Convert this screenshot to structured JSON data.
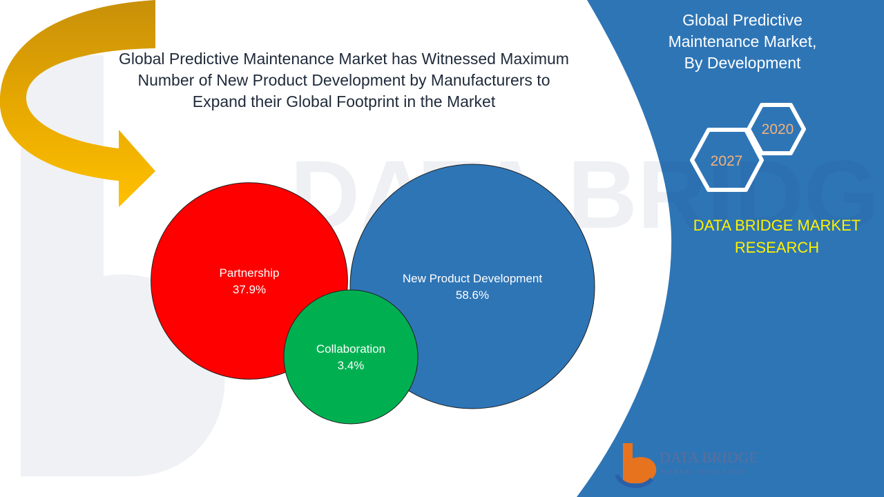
{
  "headline": {
    "line1": "Global Predictive Maintenance Market has Witnessed Maximum",
    "line2": "Number of  New Product Development by Manufacturers to",
    "line3": "Expand their Global Footprint in the Market"
  },
  "side_panel": {
    "title_line1": "Global Predictive",
    "title_line2": "Maintenance Market,",
    "title_line3": "By Development",
    "hex_years": [
      "2020",
      "2027"
    ],
    "brand_line1": "DATA BRIDGE MARKET",
    "brand_line2": "RESEARCH"
  },
  "logo": {
    "name": "DATA BRIDGE",
    "sub": "MARKET RESEARCH"
  },
  "colors": {
    "panel_blue": "#2e75b6",
    "partnership": "#ff0000",
    "new_product_development": "#2e75b6",
    "collaboration": "#00b050",
    "arrow": "#ffc000",
    "brand_yellow": "#fff200"
  },
  "chart_data": {
    "type": "bubble",
    "title": "",
    "categories": [
      "Partnership",
      "New Product Development",
      "Collaboration"
    ],
    "values": [
      37.9,
      58.6,
      3.4
    ],
    "value_labels": [
      "37.9%",
      "58.6%",
      "3.4%"
    ],
    "unit": "%"
  }
}
